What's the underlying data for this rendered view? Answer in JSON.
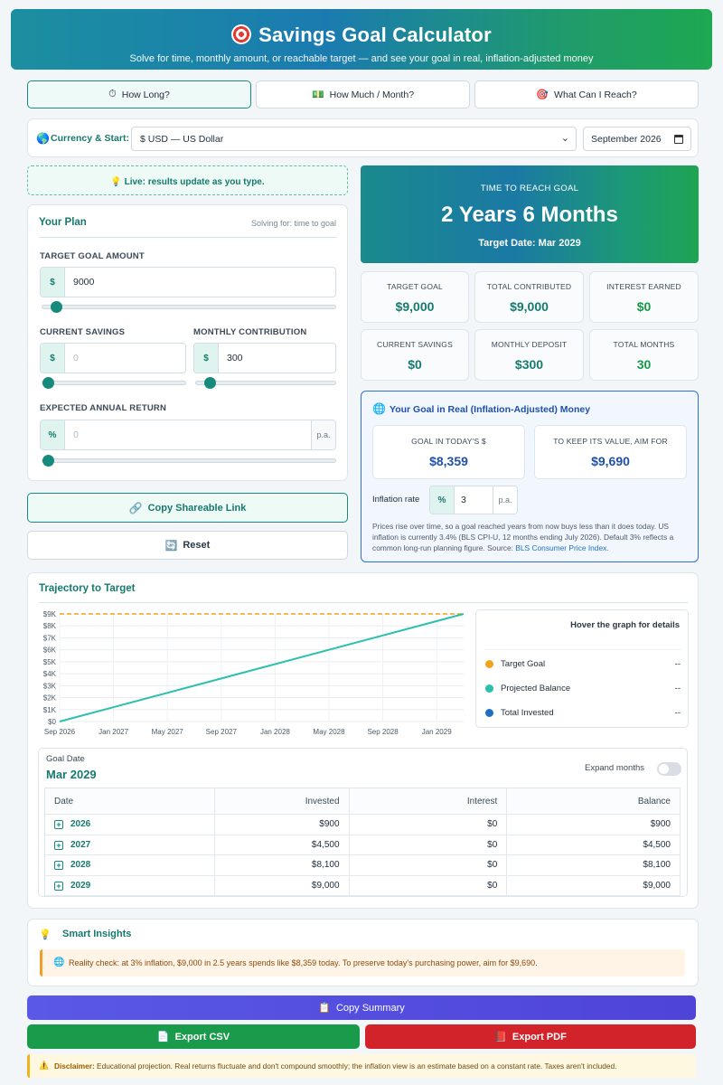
{
  "header": {
    "title": "Savings Goal Calculator",
    "subtitle": "Solve for time, monthly amount, or reachable target — and see your goal in real, inflation-adjusted money"
  },
  "tabs": [
    {
      "label": "How Long?",
      "icon": "stopwatch-icon",
      "glyph": "⏱"
    },
    {
      "label": "How Much / Month?",
      "icon": "money-icon",
      "glyph": "💵"
    },
    {
      "label": "What Can I Reach?",
      "icon": "target-icon",
      "glyph": "🎯"
    }
  ],
  "currency": {
    "label": "Currency & Start:",
    "selected": "$ USD — US Dollar",
    "start_date": "September 2026"
  },
  "live_note": "Live: results update as you type.",
  "plan": {
    "title": "Your Plan",
    "solving_for": "Solving for: time to goal",
    "target_label": "TARGET GOAL AMOUNT",
    "target_prefix": "$",
    "target_value": "9000",
    "current_label": "CURRENT SAVINGS",
    "current_prefix": "$",
    "current_placeholder": "0",
    "monthly_label": "MONTHLY CONTRIBUTION",
    "monthly_prefix": "$",
    "monthly_value": "300",
    "return_label": "EXPECTED ANNUAL RETURN",
    "return_prefix": "%",
    "return_placeholder": "0",
    "return_suffix": "p.a.",
    "sliders": {
      "target": 0.03,
      "current": 0.0,
      "monthly": 0.06,
      "return": 0.0
    }
  },
  "buttons": {
    "copy_link": "Copy Shareable Link",
    "reset": "Reset",
    "copy_summary": "Copy Summary",
    "export_csv": "Export CSV",
    "export_pdf": "Export PDF"
  },
  "result": {
    "label": "TIME TO REACH GOAL",
    "value": "2 Years 6 Months",
    "target_date": "Target Date: Mar 2029"
  },
  "stats": [
    {
      "label": "TARGET GOAL",
      "value": "$9,000",
      "color": "#167a6e"
    },
    {
      "label": "TOTAL CONTRIBUTED",
      "value": "$9,000",
      "color": "#167a6e"
    },
    {
      "label": "INTEREST EARNED",
      "value": "$0",
      "color": "#15984b"
    },
    {
      "label": "CURRENT SAVINGS",
      "value": "$0",
      "color": "#167a6e"
    },
    {
      "label": "MONTHLY DEPOSIT",
      "value": "$300",
      "color": "#167a6e"
    },
    {
      "label": "TOTAL MONTHS",
      "value": "30",
      "color": "#15984b"
    }
  ],
  "inflation": {
    "title": "Your Goal in Real (Inflation-Adjusted) Money",
    "today_label": "GOAL IN TODAY'S $",
    "today_value": "$8,359",
    "aim_label": "TO KEEP ITS VALUE, AIM FOR",
    "aim_value": "$9,690",
    "rate_label": "Inflation rate",
    "rate_prefix": "%",
    "rate_value": "3",
    "rate_suffix": "p.a.",
    "note": "Prices rise over time, so a goal reached years from now buys less than it does today. US inflation is currently 3.4% (BLS CPI-U, 12 months ending July 2026). Default 3% reflects a common long-run planning figure. Source: ",
    "source_link": "BLS Consumer Price Index."
  },
  "trajectory": {
    "title": "Trajectory to Target",
    "hover_hint": "Hover the graph for details",
    "legend": [
      {
        "name": "Target Goal",
        "value": "--",
        "color": "#f2a31b"
      },
      {
        "name": "Projected Balance",
        "value": "--",
        "color": "#2bbfae"
      },
      {
        "name": "Total Invested",
        "value": "--",
        "color": "#1f6fc6"
      }
    ]
  },
  "chart_data": {
    "type": "line",
    "y_ticks": [
      "$0",
      "$1K",
      "$2K",
      "$3K",
      "$4K",
      "$5K",
      "$6K",
      "$7K",
      "$8K",
      "$9K"
    ],
    "x_ticks": [
      "Sep 2026",
      "Jan 2027",
      "May 2027",
      "Sep 2027",
      "Jan 2028",
      "May 2028",
      "Sep 2028",
      "Jan 2029"
    ],
    "ylim": [
      0,
      9000
    ],
    "x_months": [
      0,
      30
    ],
    "series": [
      {
        "name": "Target Goal",
        "style": "dashed",
        "color": "#f2a31b",
        "points": [
          [
            0,
            9000
          ],
          [
            30,
            9000
          ]
        ]
      },
      {
        "name": "Projected Balance",
        "style": "solid",
        "color": "#2bbfae",
        "points": [
          [
            0,
            0
          ],
          [
            30,
            9000
          ]
        ]
      }
    ],
    "grid": true
  },
  "schedule": {
    "goal_date_label": "Goal Date",
    "goal_date": "Mar 2029",
    "expand_label": "Expand months",
    "columns": [
      "Date",
      "Invested",
      "Interest",
      "Balance"
    ],
    "rows": [
      {
        "date": "2026",
        "invested": "$900",
        "interest": "$0",
        "balance": "$900"
      },
      {
        "date": "2027",
        "invested": "$4,500",
        "interest": "$0",
        "balance": "$4,500"
      },
      {
        "date": "2028",
        "invested": "$8,100",
        "interest": "$0",
        "balance": "$8,100"
      },
      {
        "date": "2029",
        "invested": "$9,000",
        "interest": "$0",
        "balance": "$9,000"
      }
    ]
  },
  "insights": {
    "title": "Smart Insights",
    "message": "Reality check: at 3% inflation, $9,000 in 2.5 years spends like $8,359 today. To preserve today's purchasing power, aim for $9,690."
  },
  "disclaimer": {
    "label": "Disclaimer:",
    "text": "Educational projection. Real returns fluctuate and don't compound smoothly; the inflation view is an estimate based on a constant rate. Taxes aren't included."
  },
  "colors": {
    "accent": "#178a7e",
    "brand_blue": "#1f6fc6",
    "csv_green": "#1a9a4b",
    "pdf_red": "#d2232a"
  }
}
